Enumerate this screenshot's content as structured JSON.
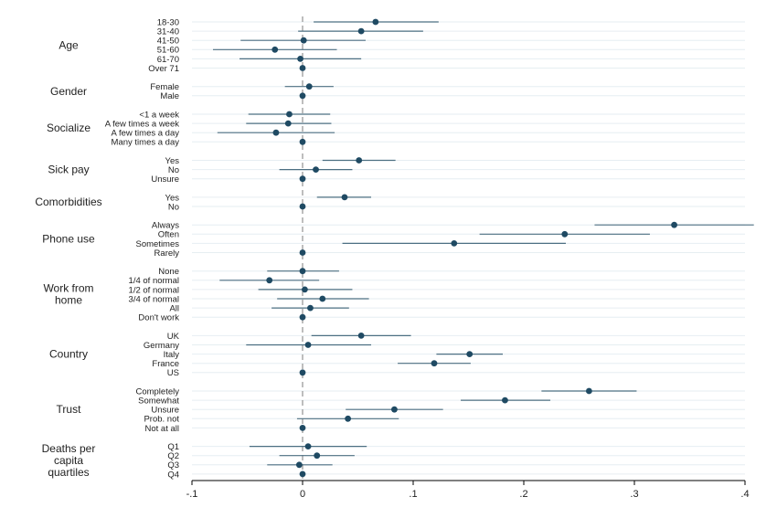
{
  "chart_data": {
    "type": "coefficient_plot",
    "orientation": "horizontal",
    "xlim": [
      -0.1,
      0.4
    ],
    "xticks": [
      -0.1,
      0,
      0.1,
      0.2,
      0.3,
      0.4
    ],
    "xtick_labels": [
      "-.1",
      "0",
      ".1",
      ".2",
      ".3",
      ".4"
    ],
    "reference_line": 0,
    "grid": true,
    "groups": [
      {
        "label": [
          "Age"
        ],
        "rows": [
          {
            "label": "18-30",
            "coef": 0.066,
            "lo": 0.01,
            "hi": 0.123
          },
          {
            "label": "31-40",
            "coef": 0.053,
            "lo": -0.004,
            "hi": 0.109
          },
          {
            "label": "41-50",
            "coef": 0.001,
            "lo": -0.056,
            "hi": 0.057
          },
          {
            "label": "51-60",
            "coef": -0.025,
            "lo": -0.081,
            "hi": 0.031
          },
          {
            "label": "61-70",
            "coef": -0.002,
            "lo": -0.057,
            "hi": 0.053
          },
          {
            "label": "Over 71",
            "coef": 0,
            "lo": null,
            "hi": null
          }
        ]
      },
      {
        "label": [
          "Gender"
        ],
        "rows": [
          {
            "label": "Female",
            "coef": 0.006,
            "lo": -0.016,
            "hi": 0.028
          },
          {
            "label": "Male",
            "coef": 0,
            "lo": null,
            "hi": null
          }
        ]
      },
      {
        "label": [
          "Socialize"
        ],
        "rows": [
          {
            "label": "<1 a week",
            "coef": -0.012,
            "lo": -0.049,
            "hi": 0.025
          },
          {
            "label": "A few times a week",
            "coef": -0.013,
            "lo": -0.051,
            "hi": 0.026
          },
          {
            "label": "A few times a day",
            "coef": -0.024,
            "lo": -0.077,
            "hi": 0.029
          },
          {
            "label": "Many times a day",
            "coef": 0,
            "lo": null,
            "hi": null
          }
        ]
      },
      {
        "label": [
          "Sick pay"
        ],
        "rows": [
          {
            "label": "Yes",
            "coef": 0.051,
            "lo": 0.018,
            "hi": 0.084
          },
          {
            "label": "No",
            "coef": 0.012,
            "lo": -0.021,
            "hi": 0.045
          },
          {
            "label": "Unsure",
            "coef": 0,
            "lo": null,
            "hi": null
          }
        ]
      },
      {
        "label": [
          "Comorbidities"
        ],
        "rows": [
          {
            "label": "Yes",
            "coef": 0.038,
            "lo": 0.013,
            "hi": 0.062
          },
          {
            "label": "No",
            "coef": 0,
            "lo": null,
            "hi": null
          }
        ]
      },
      {
        "label": [
          "Phone use"
        ],
        "rows": [
          {
            "label": "Always",
            "coef": 0.336,
            "lo": 0.264,
            "hi": 0.408
          },
          {
            "label": "Often",
            "coef": 0.237,
            "lo": 0.16,
            "hi": 0.314
          },
          {
            "label": "Sometimes",
            "coef": 0.137,
            "lo": 0.036,
            "hi": 0.238
          },
          {
            "label": "Rarely",
            "coef": 0,
            "lo": null,
            "hi": null
          }
        ]
      },
      {
        "label": [
          "Work from",
          "home"
        ],
        "rows": [
          {
            "label": "None",
            "coef": 0.0,
            "lo": -0.032,
            "hi": 0.033
          },
          {
            "label": "1/4 of normal",
            "coef": -0.03,
            "lo": -0.075,
            "hi": 0.015
          },
          {
            "label": "1/2 of normal",
            "coef": 0.002,
            "lo": -0.04,
            "hi": 0.045
          },
          {
            "label": "3/4 of normal",
            "coef": 0.018,
            "lo": -0.023,
            "hi": 0.06
          },
          {
            "label": "All",
            "coef": 0.007,
            "lo": -0.028,
            "hi": 0.042
          },
          {
            "label": "Don't work",
            "coef": 0,
            "lo": null,
            "hi": null
          }
        ]
      },
      {
        "label": [
          "Country"
        ],
        "rows": [
          {
            "label": "UK",
            "coef": 0.053,
            "lo": 0.008,
            "hi": 0.098
          },
          {
            "label": "Germany",
            "coef": 0.005,
            "lo": -0.051,
            "hi": 0.062
          },
          {
            "label": "Italy",
            "coef": 0.151,
            "lo": 0.121,
            "hi": 0.181
          },
          {
            "label": "France",
            "coef": 0.119,
            "lo": 0.086,
            "hi": 0.152
          },
          {
            "label": "US",
            "coef": 0,
            "lo": null,
            "hi": null
          }
        ]
      },
      {
        "label": [
          "Trust"
        ],
        "rows": [
          {
            "label": "Completely",
            "coef": 0.259,
            "lo": 0.216,
            "hi": 0.302
          },
          {
            "label": "Somewhat",
            "coef": 0.183,
            "lo": 0.143,
            "hi": 0.224
          },
          {
            "label": "Unsure",
            "coef": 0.083,
            "lo": 0.039,
            "hi": 0.127
          },
          {
            "label": "Prob. not",
            "coef": 0.041,
            "lo": -0.005,
            "hi": 0.087
          },
          {
            "label": "Not at all",
            "coef": 0,
            "lo": null,
            "hi": null
          }
        ]
      },
      {
        "label": [
          "Deaths per",
          "capita",
          "quartiles"
        ],
        "rows": [
          {
            "label": "Q1",
            "coef": 0.005,
            "lo": -0.048,
            "hi": 0.058
          },
          {
            "label": "Q2",
            "coef": 0.013,
            "lo": -0.021,
            "hi": 0.047
          },
          {
            "label": "Q3",
            "coef": -0.003,
            "lo": -0.032,
            "hi": 0.027
          },
          {
            "label": "Q4",
            "coef": 0,
            "lo": null,
            "hi": null
          }
        ]
      }
    ]
  },
  "colors": {
    "point": "#1f4a63",
    "interval": "#4c6f82",
    "grid": "#e6eef2",
    "reference_line": "#9a9a9a"
  }
}
